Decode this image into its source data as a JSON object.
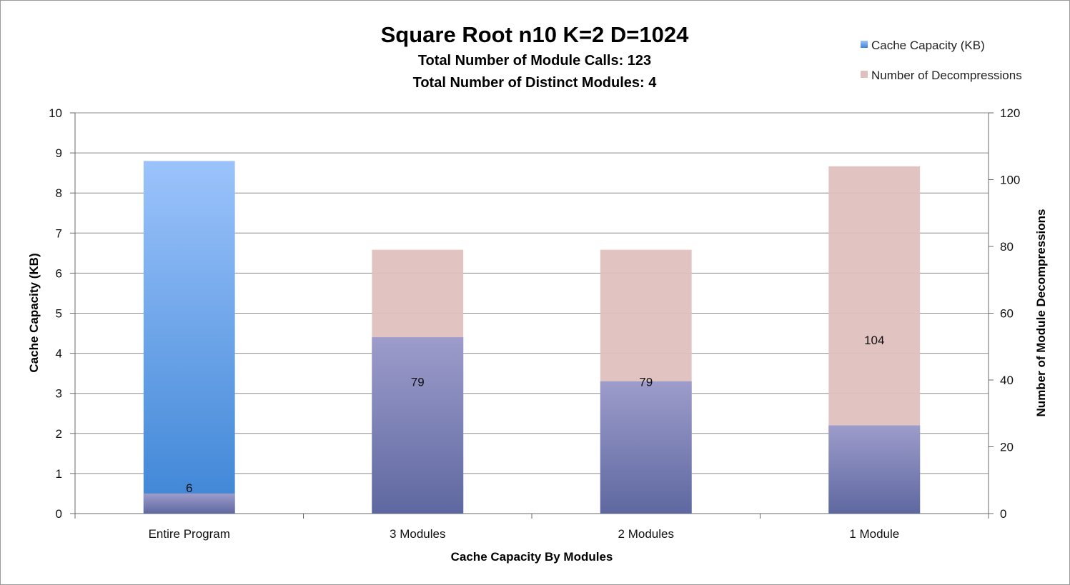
{
  "chart_data": {
    "type": "bar",
    "title": "Square Root n10 K=2 D=1024",
    "subtitles": [
      "Total Number of Module Calls: 123",
      "Total Number of Distinct Modules: 4"
    ],
    "xlabel": "Cache Capacity By Modules",
    "ylabel": "Cache Capacity (KB)",
    "y2label": "Number of Module Decompressions",
    "categories": [
      "Entire Program",
      "3 Modules",
      "2 Modules",
      "1 Module"
    ],
    "ylim": [
      0,
      10
    ],
    "yticks": [
      "0",
      "1",
      "2",
      "3",
      "4",
      "5",
      "6",
      "7",
      "8",
      "9",
      "10"
    ],
    "y2lim": [
      0,
      120
    ],
    "y2ticks": [
      "0",
      "20",
      "40",
      "60",
      "80",
      "100",
      "120"
    ],
    "grid": true,
    "legend_position": "top-right",
    "series": [
      {
        "name": "Cache Capacity (KB)",
        "axis": "left",
        "values": [
          8.8,
          4.4,
          3.3,
          2.2
        ],
        "color_top": "#9cc3fb",
        "color_bottom": "#3d85d6",
        "color_top_blend": "#9d9ccb",
        "color_bottom_blend": "#5e68a0"
      },
      {
        "name": "Number of Decompressions",
        "axis": "right",
        "values": [
          6,
          79,
          79,
          104
        ],
        "data_labels": [
          "6",
          "79",
          "79",
          "104"
        ],
        "color": "#dfc0bf"
      }
    ]
  }
}
